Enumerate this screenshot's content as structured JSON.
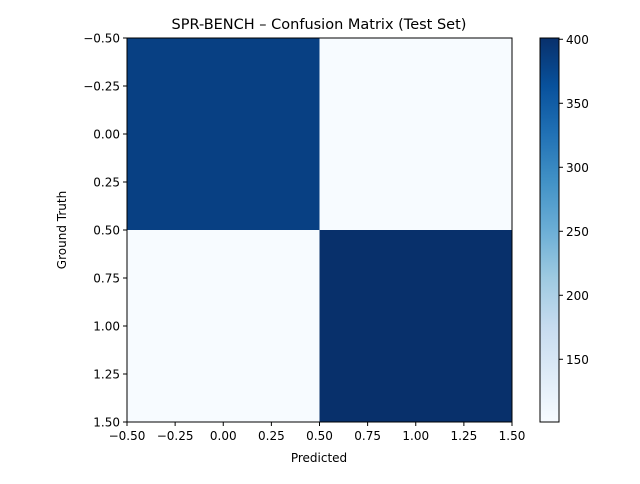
{
  "chart_data": {
    "type": "heatmap",
    "title": "SPR-BENCH – Confusion Matrix (Test Set)",
    "xlabel": "Predicted",
    "ylabel": "Ground Truth",
    "matrix": [
      [
        383,
        101
      ],
      [
        101,
        401
      ]
    ],
    "xlim": [
      -0.5,
      1.5
    ],
    "ylim": [
      1.5,
      -0.5
    ],
    "x_ticks": [
      "−0.50",
      "−0.25",
      "0.00",
      "0.25",
      "0.50",
      "0.75",
      "1.00",
      "1.25",
      "1.50"
    ],
    "y_ticks": [
      "−0.50",
      "−0.25",
      "0.00",
      "0.25",
      "0.50",
      "0.75",
      "1.00",
      "1.25",
      "1.50"
    ],
    "colorbar": {
      "colormap": "Blues",
      "range": [
        101,
        401
      ],
      "ticks": [
        "150",
        "200",
        "250",
        "300",
        "350",
        "400"
      ]
    },
    "grid": false,
    "legend": "none"
  }
}
